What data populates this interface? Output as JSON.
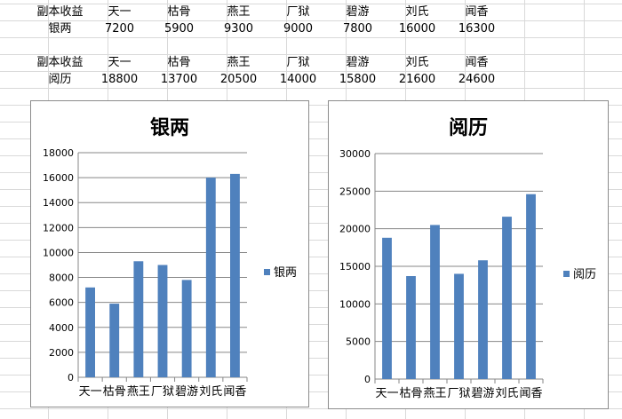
{
  "table": {
    "rows": [
      [
        "副本收益",
        "天一",
        "枯骨",
        "燕王",
        "厂狱",
        "碧游",
        "刘氏",
        "闻香"
      ],
      [
        "银两",
        "7200",
        "5900",
        "9300",
        "9000",
        "7800",
        "16000",
        "16300"
      ],
      [
        "",
        "",
        "",
        "",
        "",
        "",
        "",
        ""
      ],
      [
        "副本收益",
        "天一",
        "枯骨",
        "燕王",
        "厂狱",
        "碧游",
        "刘氏",
        "闻香"
      ],
      [
        "阅历",
        "18800",
        "13700",
        "20500",
        "14000",
        "15800",
        "21600",
        "24600"
      ]
    ]
  },
  "chart_data": [
    {
      "type": "bar",
      "title": "银两",
      "categories": [
        "天一",
        "枯骨",
        "燕王",
        "厂狱",
        "碧游",
        "刘氏",
        "闻香"
      ],
      "series": [
        {
          "name": "银两",
          "values": [
            7200,
            5900,
            9300,
            9000,
            7800,
            16000,
            16300
          ],
          "color": "#4f81bd"
        }
      ],
      "yticks": [
        "0",
        "2000",
        "4000",
        "6000",
        "8000",
        "10000",
        "12000",
        "14000",
        "16000",
        "18000"
      ],
      "ylim": [
        0,
        18000
      ],
      "grid": true,
      "legend": "right"
    },
    {
      "type": "bar",
      "title": "阅历",
      "categories": [
        "天一",
        "枯骨",
        "燕王",
        "厂狱",
        "碧游",
        "刘氏",
        "闻香"
      ],
      "series": [
        {
          "name": "阅历",
          "values": [
            18800,
            13700,
            20500,
            14000,
            15800,
            21600,
            24600
          ],
          "color": "#4f81bd"
        }
      ],
      "yticks": [
        "0",
        "5000",
        "10000",
        "15000",
        "20000",
        "25000",
        "30000"
      ],
      "ylim": [
        0,
        30000
      ],
      "grid": true,
      "legend": "right"
    }
  ]
}
